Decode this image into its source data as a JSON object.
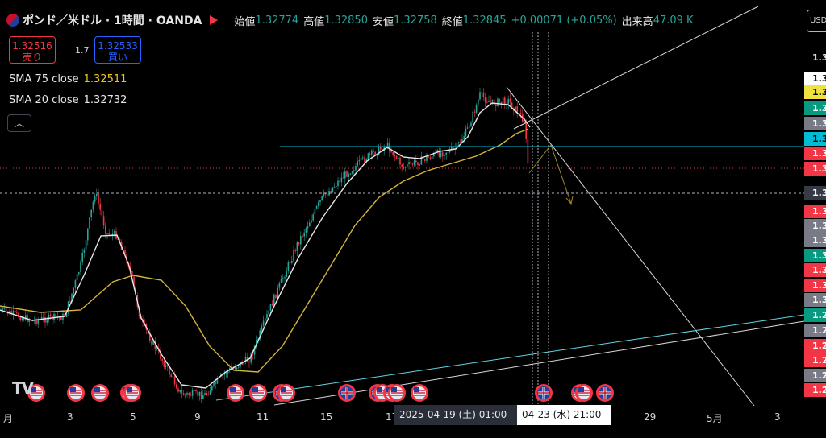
{
  "header": {
    "title": "ポンド／米ドル · 1時間 · OANDA",
    "open_label": "始値",
    "open_value": "1.32774",
    "high_label": "高値",
    "high_value": "1.32850",
    "low_label": "安値",
    "low_value": "1.32758",
    "close_label": "終値",
    "close_value": "1.32845",
    "change": "+0.00071 (+0.05%)",
    "volume_label": "出来高",
    "volume_value": "47.09 K"
  },
  "trade": {
    "sell_price": "1.32516",
    "sell_label": "売り",
    "spread": "1.7",
    "buy_price": "1.32533",
    "buy_label": "買い"
  },
  "indicators": [
    {
      "name": "SMA 75 close",
      "value": "1.32511",
      "color": "#f0c419"
    },
    {
      "name": "SMA 20 close",
      "value": "1.32732",
      "color": "#e6e6e6"
    }
  ],
  "currency_button": "USD",
  "logo": "TV",
  "price_labels": [
    {
      "text": "1.3",
      "bg": "#000000",
      "fg": "#e6e6e6"
    },
    {
      "text": "1.3",
      "bg": "#ffffff",
      "fg": "#000000"
    },
    {
      "text": "1.3",
      "bg": "#f0e040",
      "fg": "#000000"
    },
    {
      "text": "1.3",
      "bg": "#089981",
      "fg": "#ffffff"
    },
    {
      "text": "1.3",
      "bg": "#787b86",
      "fg": "#ffffff"
    },
    {
      "text": "1.3",
      "bg": "#00bcd4",
      "fg": "#000000"
    },
    {
      "text": "1.3",
      "bg": "#f23645",
      "fg": "#ffffff"
    },
    {
      "text": "1.3",
      "bg": "#f23645",
      "fg": "#ffffff"
    },
    {
      "text": "1.3",
      "bg": "#363a45",
      "fg": "#ffffff"
    },
    {
      "text": "1.3",
      "bg": "#f23645",
      "fg": "#ffffff"
    },
    {
      "text": "1.3",
      "bg": "#787b86",
      "fg": "#ffffff"
    },
    {
      "text": "1.3",
      "bg": "#787b86",
      "fg": "#ffffff"
    },
    {
      "text": "1.3",
      "bg": "#089981",
      "fg": "#ffffff"
    },
    {
      "text": "1.3",
      "bg": "#f23645",
      "fg": "#ffffff"
    },
    {
      "text": "1.3",
      "bg": "#f23645",
      "fg": "#ffffff"
    },
    {
      "text": "1.3",
      "bg": "#787b86",
      "fg": "#ffffff"
    },
    {
      "text": "1.2",
      "bg": "#089981",
      "fg": "#ffffff"
    },
    {
      "text": "1.2",
      "bg": "#787b86",
      "fg": "#ffffff"
    },
    {
      "text": "1.2",
      "bg": "#f23645",
      "fg": "#ffffff"
    },
    {
      "text": "1.2",
      "bg": "#f23645",
      "fg": "#ffffff"
    },
    {
      "text": "1.2",
      "bg": "#787b86",
      "fg": "#ffffff"
    },
    {
      "text": "1.2",
      "bg": "#f23645",
      "fg": "#ffffff"
    }
  ],
  "time_axis": [
    "月",
    "3",
    "5",
    "9",
    "11",
    "15",
    "17",
    "29",
    "5月",
    "3"
  ],
  "crosshair_dates": [
    "2025-04-19 (土)   01:00",
    "04-23 (水)   21:00"
  ],
  "colors": {
    "up": "#26a69a",
    "down": "#f23645",
    "sma75": "#d4b43a",
    "sma20": "#e6e6e6",
    "trendline": "#00bcd4"
  }
}
